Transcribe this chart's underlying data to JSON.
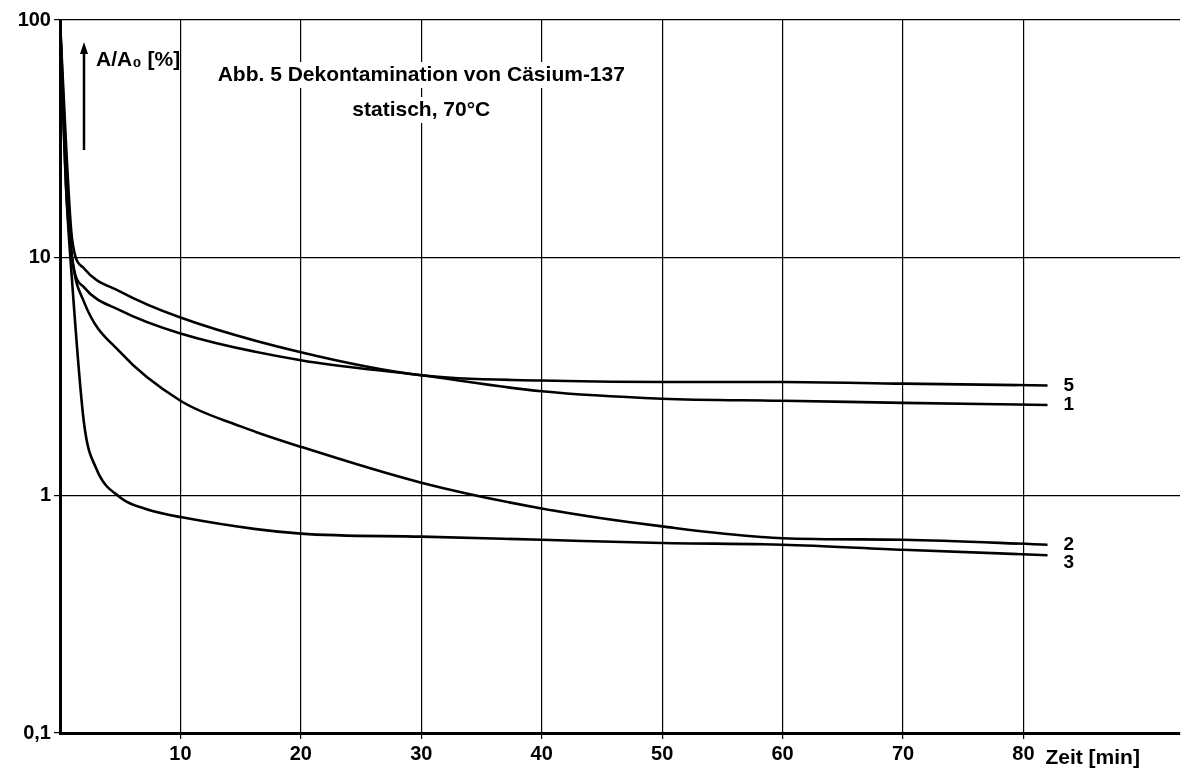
{
  "chart_data": {
    "type": "line",
    "title": "Abb. 5 Dekontamination von Cäsium-137",
    "subtitle": "statisch, 70°C",
    "xlabel": "Zeit [min]",
    "ylabel": "A/A₀ [%]",
    "log": "y",
    "grid": true,
    "legend": false,
    "marker": "none",
    "line_style": "solid",
    "xlim": [
      0,
      93
    ],
    "xticks": [
      10,
      20,
      30,
      40,
      50,
      60,
      70,
      80
    ],
    "ylim": [
      0.1,
      100
    ],
    "yticks": [
      {
        "value": 0.1,
        "label": "0,1"
      },
      1,
      10,
      100
    ],
    "series": [
      {
        "name": "5",
        "color": "#000000",
        "x": [
          0,
          0.5,
          1,
          2,
          5,
          10,
          20,
          30,
          40,
          50,
          60,
          70,
          82
        ],
        "values": [
          100,
          30,
          12,
          9,
          7.2,
          5.6,
          4.0,
          3.2,
          3.04,
          3.0,
          3.0,
          2.95,
          2.9
        ]
      },
      {
        "name": "1",
        "color": "#000000",
        "x": [
          0,
          0.5,
          1,
          2,
          5,
          10,
          20,
          30,
          40,
          50,
          60,
          70,
          82
        ],
        "values": [
          100,
          25,
          10,
          7.5,
          6.0,
          4.8,
          3.7,
          3.2,
          2.74,
          2.55,
          2.5,
          2.45,
          2.4
        ]
      },
      {
        "name": "2",
        "color": "#000000",
        "x": [
          0,
          0.5,
          1,
          2,
          5,
          10,
          15,
          20,
          30,
          40,
          50,
          60,
          70,
          82
        ],
        "values": [
          100,
          20,
          10,
          6.5,
          4.0,
          2.5,
          1.95,
          1.6,
          1.13,
          0.88,
          0.74,
          0.66,
          0.65,
          0.62
        ]
      },
      {
        "name": "3",
        "color": "#000000",
        "x": [
          0,
          0.5,
          1,
          2,
          3,
          5,
          7,
          10,
          20,
          30,
          40,
          50,
          60,
          70,
          82
        ],
        "values": [
          100,
          20,
          8,
          2,
          1.3,
          0.98,
          0.88,
          0.81,
          0.69,
          0.67,
          0.65,
          0.63,
          0.62,
          0.59,
          0.56
        ]
      }
    ]
  }
}
